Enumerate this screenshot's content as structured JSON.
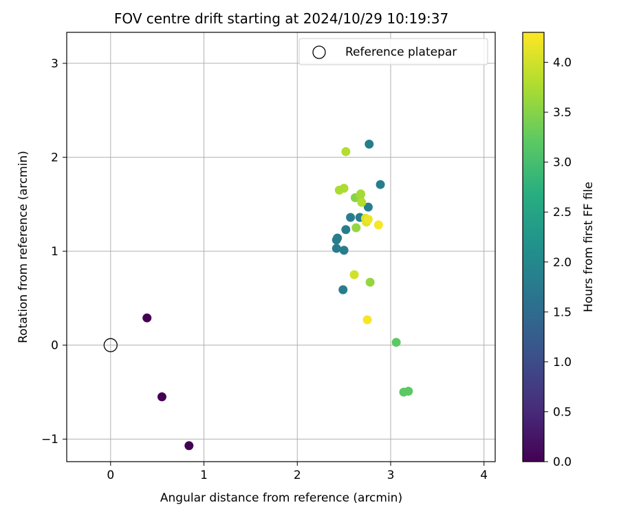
{
  "chart_data": {
    "type": "scatter",
    "title": "FOV centre drift starting at 2024/10/29 10:19:37",
    "xlabel": "Angular distance from reference (arcmin)",
    "ylabel": "Rotation from reference (arcmin)",
    "xlim": [
      -0.47,
      4.12
    ],
    "ylim": [
      -1.24,
      3.33
    ],
    "x_ticks": [
      0,
      1,
      2,
      3,
      4
    ],
    "x_tick_labels": [
      "0",
      "1",
      "2",
      "3",
      "4"
    ],
    "y_ticks": [
      -1,
      0,
      1,
      2,
      3
    ],
    "y_tick_labels": [
      "−1",
      "0",
      "1",
      "2",
      "3"
    ],
    "grid": true,
    "legend": {
      "placement": "top-right",
      "entries": [
        "Reference platepar"
      ]
    },
    "reference_point": {
      "x": 0,
      "y": 0
    },
    "colorbar": {
      "label": "Hours from first FF file",
      "colormap": "viridis",
      "range": [
        0.0,
        4.3
      ],
      "ticks": [
        0.0,
        0.5,
        1.0,
        1.5,
        2.0,
        2.5,
        3.0,
        3.5,
        4.0
      ],
      "tick_labels": [
        "0.0",
        "0.5",
        "1.0",
        "1.5",
        "2.0",
        "2.5",
        "3.0",
        "3.5",
        "4.0"
      ]
    },
    "points": [
      {
        "x": 0.39,
        "y": 0.29,
        "hours": 0.0
      },
      {
        "x": 0.55,
        "y": -0.55,
        "hours": 0.0
      },
      {
        "x": 0.84,
        "y": -1.07,
        "hours": 0.0
      },
      {
        "x": 2.77,
        "y": 2.14,
        "hours": 1.8
      },
      {
        "x": 2.89,
        "y": 1.71,
        "hours": 1.8
      },
      {
        "x": 2.76,
        "y": 1.47,
        "hours": 1.8
      },
      {
        "x": 2.57,
        "y": 1.36,
        "hours": 1.8
      },
      {
        "x": 2.67,
        "y": 1.36,
        "hours": 1.8
      },
      {
        "x": 2.52,
        "y": 1.23,
        "hours": 1.8
      },
      {
        "x": 2.43,
        "y": 1.14,
        "hours": 1.8
      },
      {
        "x": 2.42,
        "y": 1.12,
        "hours": 1.8
      },
      {
        "x": 2.42,
        "y": 1.03,
        "hours": 1.8
      },
      {
        "x": 2.5,
        "y": 1.01,
        "hours": 1.8
      },
      {
        "x": 2.49,
        "y": 0.59,
        "hours": 1.8
      },
      {
        "x": 3.06,
        "y": 0.03,
        "hours": 3.2
      },
      {
        "x": 3.14,
        "y": -0.5,
        "hours": 3.2
      },
      {
        "x": 3.19,
        "y": -0.49,
        "hours": 3.2
      },
      {
        "x": 2.78,
        "y": 0.67,
        "hours": 3.6
      },
      {
        "x": 2.63,
        "y": 1.25,
        "hours": 3.6
      },
      {
        "x": 2.62,
        "y": 1.57,
        "hours": 3.5
      },
      {
        "x": 2.67,
        "y": 1.58,
        "hours": 3.6
      },
      {
        "x": 2.68,
        "y": 1.61,
        "hours": 3.7
      },
      {
        "x": 2.69,
        "y": 1.52,
        "hours": 3.8
      },
      {
        "x": 2.45,
        "y": 1.65,
        "hours": 3.75
      },
      {
        "x": 2.5,
        "y": 1.67,
        "hours": 3.75
      },
      {
        "x": 2.52,
        "y": 2.06,
        "hours": 3.8
      },
      {
        "x": 2.61,
        "y": 0.75,
        "hours": 4.0
      },
      {
        "x": 2.73,
        "y": 1.35,
        "hours": 4.05
      },
      {
        "x": 2.74,
        "y": 1.31,
        "hours": 4.1
      },
      {
        "x": 2.76,
        "y": 1.34,
        "hours": 4.2
      },
      {
        "x": 2.87,
        "y": 1.28,
        "hours": 4.25
      },
      {
        "x": 2.75,
        "y": 0.27,
        "hours": 4.25
      }
    ]
  }
}
